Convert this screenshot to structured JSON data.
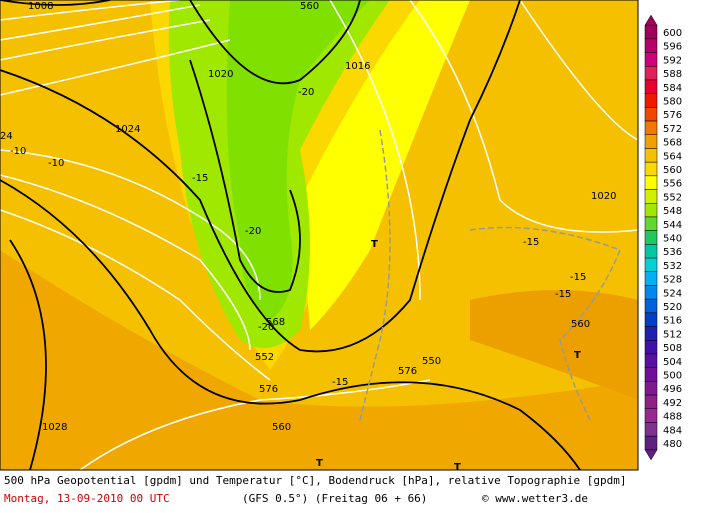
{
  "map": {
    "labels": [
      "1008",
      "560",
      "1020",
      "1016",
      "-20",
      "1024",
      "24",
      "-10",
      "-10",
      "-15",
      "-20",
      "1020",
      "T",
      "-15",
      "-15",
      "-15",
      "568",
      "-20",
      "560",
      "T",
      "552",
      "550",
      "576",
      "-15",
      "576",
      "1028",
      "560",
      "T",
      "T"
    ]
  },
  "colorbar": {
    "entries": [
      {
        "label": "600",
        "color": "#a0005a"
      },
      {
        "label": "596",
        "color": "#b8006a"
      },
      {
        "label": "592",
        "color": "#d0007a"
      },
      {
        "label": "588",
        "color": "#e0205a"
      },
      {
        "label": "584",
        "color": "#e80030"
      },
      {
        "label": "580",
        "color": "#f01800"
      },
      {
        "label": "576",
        "color": "#f04800"
      },
      {
        "label": "572",
        "color": "#f07800"
      },
      {
        "label": "568",
        "color": "#f0a000"
      },
      {
        "label": "564",
        "color": "#f5c000"
      },
      {
        "label": "560",
        "color": "#fad800"
      },
      {
        "label": "556",
        "color": "#ffff00"
      },
      {
        "label": "552",
        "color": "#d0f000"
      },
      {
        "label": "548",
        "color": "#a0e800"
      },
      {
        "label": "544",
        "color": "#60d830"
      },
      {
        "label": "540",
        "color": "#20c860"
      },
      {
        "label": "536",
        "color": "#00c8a0"
      },
      {
        "label": "532",
        "color": "#00d0d8"
      },
      {
        "label": "528",
        "color": "#00b0f0"
      },
      {
        "label": "524",
        "color": "#0088f0"
      },
      {
        "label": "520",
        "color": "#0060e0"
      },
      {
        "label": "516",
        "color": "#0040c8"
      },
      {
        "label": "512",
        "color": "#2020b0"
      },
      {
        "label": "508",
        "color": "#4010a8"
      },
      {
        "label": "504",
        "color": "#5810a0"
      },
      {
        "label": "500",
        "color": "#701098"
      },
      {
        "label": "496",
        "color": "#801890"
      },
      {
        "label": "492",
        "color": "#902088"
      },
      {
        "label": "488",
        "color": "#982890"
      },
      {
        "label": "484",
        "color": "#803090"
      },
      {
        "label": "480",
        "color": "#602080"
      }
    ]
  },
  "footer": {
    "line1": "500 hPa Geopotential [gpdm] und Temperatur [°C], Bodendruck [hPa], relative Topographie [gpdm]",
    "date": "Montag, 13-09-2010  00 UTC",
    "model": "(GFS 0.5°)  (Freitag 06 + 66)",
    "source": "© www.wetter3.de"
  }
}
